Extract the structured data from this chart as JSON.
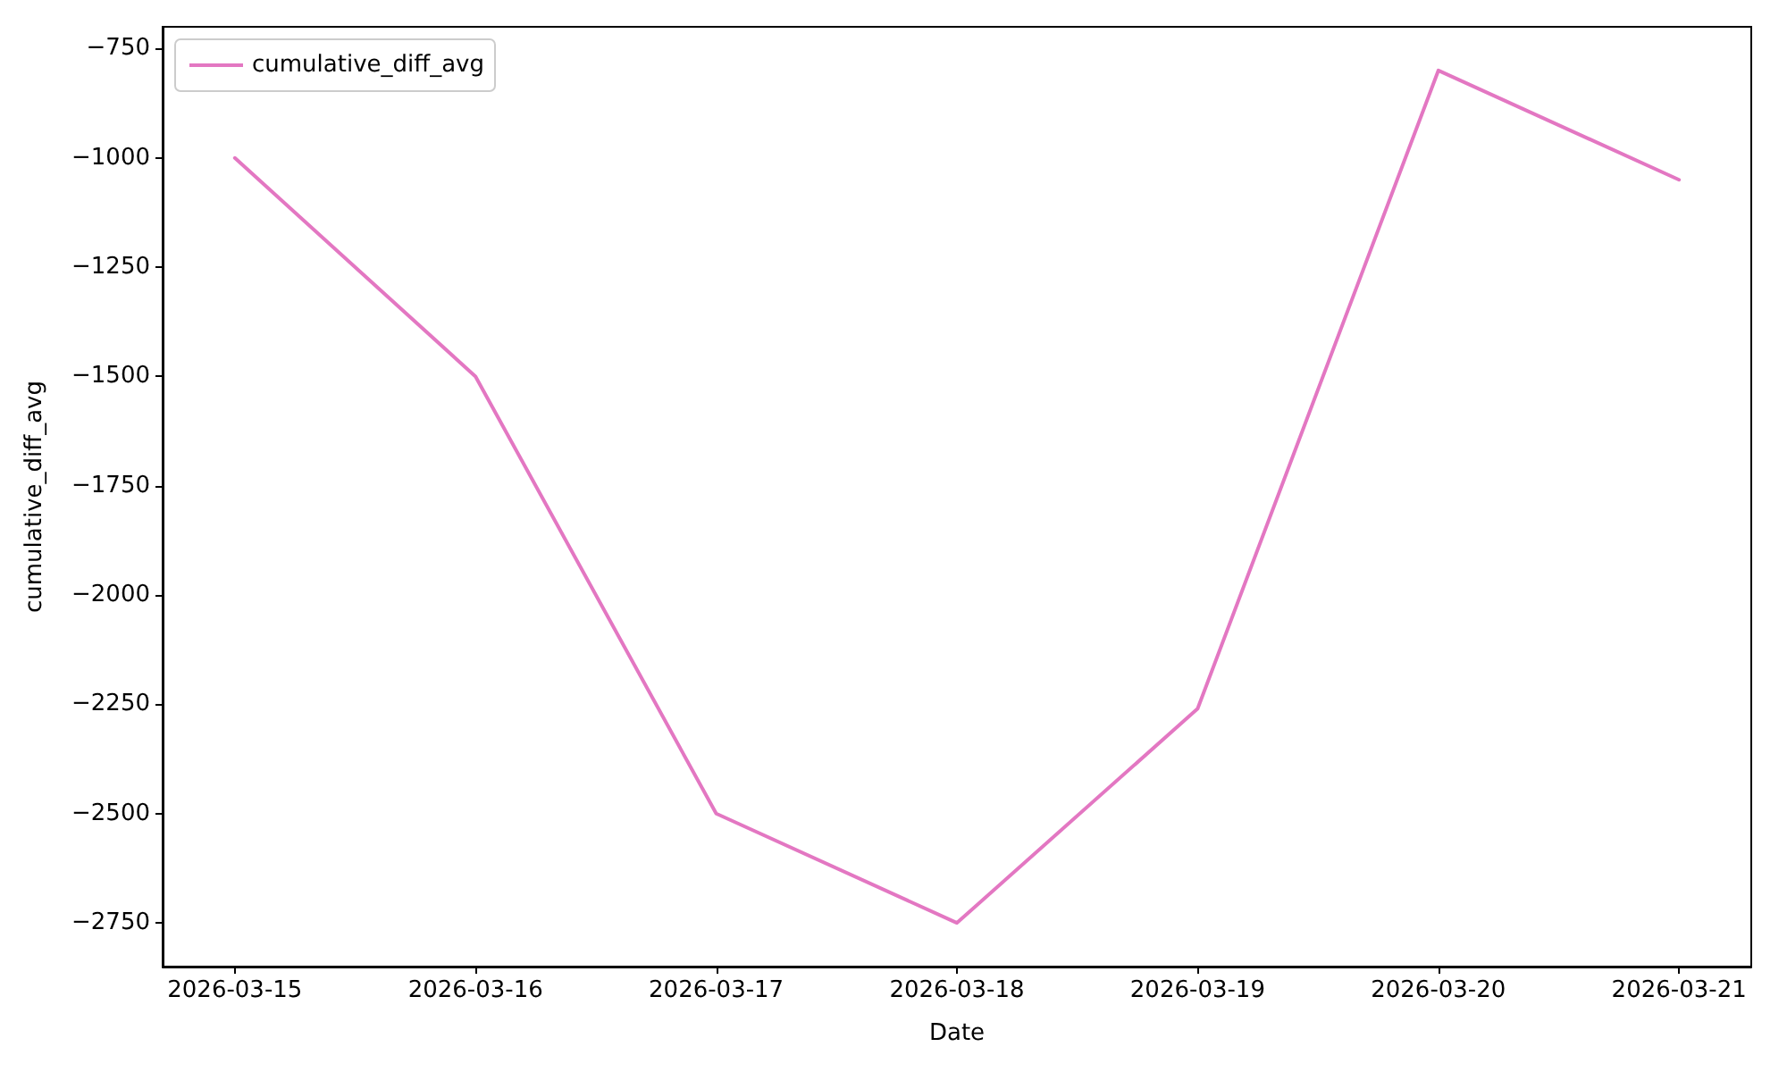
{
  "chart_data": {
    "type": "line",
    "xlabel": "Date",
    "ylabel": "cumulative_diff_avg",
    "x": [
      "2026-03-15",
      "2026-03-16",
      "2026-03-17",
      "2026-03-18",
      "2026-03-19",
      "2026-03-20",
      "2026-03-21"
    ],
    "series": [
      {
        "name": "cumulative_diff_avg",
        "color": "#e377c2",
        "values": [
          -1000,
          -1500,
          -2500,
          -2750,
          -2260,
          -800,
          -1050
        ]
      }
    ],
    "xlim": [
      "2026-03-14T16:48",
      "2026-03-21T07:12"
    ],
    "xticks": [
      "2026-03-15",
      "2026-03-16",
      "2026-03-17",
      "2026-03-18",
      "2026-03-19",
      "2026-03-20",
      "2026-03-21"
    ],
    "ylim": [
      -2850,
      -700
    ],
    "yticks": [
      {
        "value": -2750,
        "label": "−2750"
      },
      {
        "value": -2500,
        "label": "−2500"
      },
      {
        "value": -2250,
        "label": "−2250"
      },
      {
        "value": -2000,
        "label": "−2000"
      },
      {
        "value": -1750,
        "label": "−1750"
      },
      {
        "value": -1500,
        "label": "−1500"
      },
      {
        "value": -1250,
        "label": "−1250"
      },
      {
        "value": -1000,
        "label": "−1000"
      },
      {
        "value": -750,
        "label": "−750"
      }
    ],
    "grid": false,
    "legend": "top left",
    "marker": "none",
    "line_style": "solid"
  }
}
